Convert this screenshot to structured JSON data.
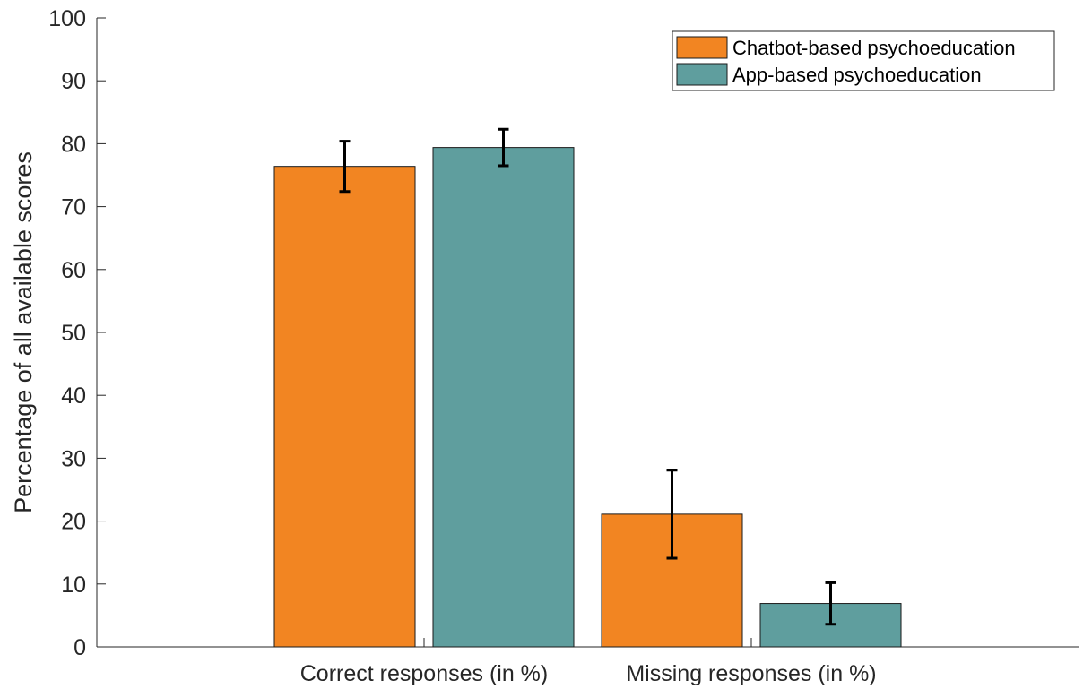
{
  "chart_data": {
    "type": "bar",
    "title": "",
    "xlabel": "",
    "ylabel": "Percentage of all available scores",
    "ylim": [
      0,
      100
    ],
    "yticks": [
      0,
      10,
      20,
      30,
      40,
      50,
      60,
      70,
      80,
      90,
      100
    ],
    "categories": [
      "Correct responses (in %)",
      "Missing responses (in %)"
    ],
    "series": [
      {
        "name": "Chatbot-based psychoeducation",
        "color": "#F28522",
        "values": [
          76.4,
          21.1
        ],
        "error_low": [
          72.4,
          14.1
        ],
        "error_high": [
          80.4,
          28.1
        ]
      },
      {
        "name": "App-based psychoeducation",
        "color": "#5F9E9E",
        "values": [
          79.4,
          6.9
        ],
        "error_low": [
          76.5,
          3.6
        ],
        "error_high": [
          82.3,
          10.2
        ]
      }
    ],
    "grid": false,
    "legend_position": "top-right"
  }
}
